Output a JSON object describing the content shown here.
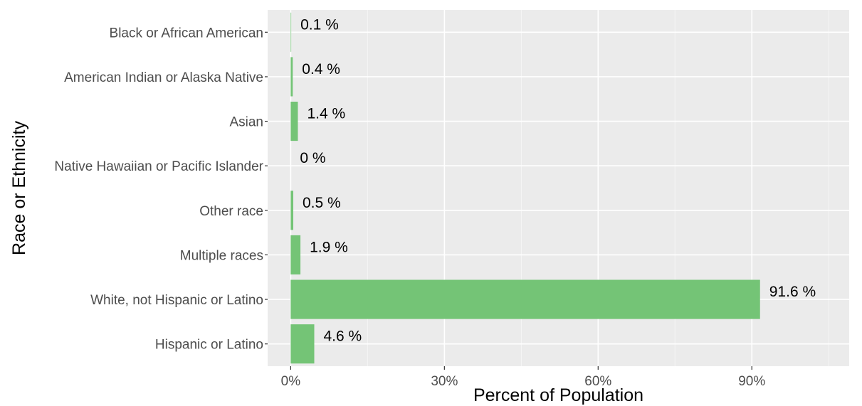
{
  "chart_data": {
    "type": "bar",
    "orientation": "horizontal",
    "title": "",
    "xlabel": "Percent of Population",
    "ylabel": "Race or Ethnicity",
    "categories": [
      "Black or African American",
      "American Indian or Alaska Native",
      "Asian",
      "Native Hawaiian or Pacific Islander",
      "Other race",
      "Multiple races",
      "White, not Hispanic or Latino",
      "Hispanic or Latino"
    ],
    "values": [
      0.1,
      0.4,
      1.4,
      0,
      0.5,
      1.9,
      91.6,
      4.6
    ],
    "value_labels": [
      "0.1 %",
      "0.4 %",
      "1.4 %",
      "0 %",
      "0.5 %",
      "1.9 %",
      "91.6 %",
      "4.6 %"
    ],
    "xlim": [
      -4.5,
      109
    ],
    "xticks": [
      0,
      30,
      60,
      90
    ],
    "xtick_labels": [
      "0%",
      "30%",
      "60%",
      "90%"
    ],
    "grid": true,
    "legend": "none",
    "colors": {
      "bar": "#74c476",
      "panel": "#ebebeb",
      "grid_major": "#ffffff",
      "grid_minor": "#f5f5f5",
      "axis_text": "#4d4d4d",
      "label_text": "#000000"
    }
  }
}
